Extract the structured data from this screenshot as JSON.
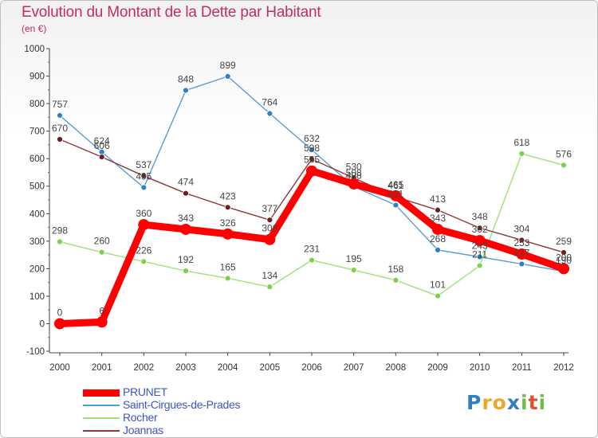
{
  "header": {
    "title": "Evolution du Montant de la Dette par Habitant",
    "subtitle": "(en €)"
  },
  "brand": {
    "letters": [
      {
        "ch": "P",
        "color": "#2f7fc1"
      },
      {
        "ch": "r",
        "color": "#e8a92b"
      },
      {
        "ch": "o",
        "color": "#e8a92b"
      },
      {
        "ch": "x",
        "color": "#2f7fc1"
      },
      {
        "ch": "i",
        "color": "#6fbf3f"
      },
      {
        "ch": "t",
        "color": "#e0502b"
      },
      {
        "ch": "i",
        "color": "#6fbf3f"
      }
    ]
  },
  "chart_data": {
    "type": "line",
    "title": "Evolution du Montant de la Dette par Habitant",
    "subtitle": "(en €)",
    "xlabel": "",
    "ylabel": "",
    "x": [
      "2000",
      "2001",
      "2002",
      "2003",
      "2004",
      "2005",
      "2006",
      "2007",
      "2008",
      "2009",
      "2010",
      "2011",
      "2012"
    ],
    "ylim": [
      -100,
      1000
    ],
    "yticks": [
      -100,
      0,
      100,
      200,
      300,
      400,
      500,
      600,
      700,
      800,
      900,
      1000
    ],
    "grid": false,
    "legend_position": "bottom-left",
    "series": [
      {
        "name": "PRUNET",
        "color": "#ff0000",
        "emphasis": true,
        "values": [
          0,
          6,
          360,
          343,
          326,
          306,
          555,
          508,
          465,
          343,
          302,
          253,
          200
        ]
      },
      {
        "name": "Saint-Cirgues-de-Prades",
        "color": "#5b9bd5",
        "marker": "#2f7fc1",
        "values": [
          757,
          624,
          495,
          848,
          899,
          764,
          632,
          498,
          431,
          268,
          243,
          217,
          190
        ]
      },
      {
        "name": "Rocher",
        "color": "#9ee07a",
        "marker": "#7cd14b",
        "values": [
          298,
          260,
          226,
          192,
          165,
          134,
          231,
          195,
          158,
          101,
          211,
          618,
          576
        ]
      },
      {
        "name": "Joannas",
        "color": "#8b3a3a",
        "marker": "#6b1f1f",
        "values": [
          670,
          606,
          537,
          474,
          423,
          377,
          598,
          530,
          461,
          413,
          348,
          304,
          259
        ]
      }
    ]
  }
}
